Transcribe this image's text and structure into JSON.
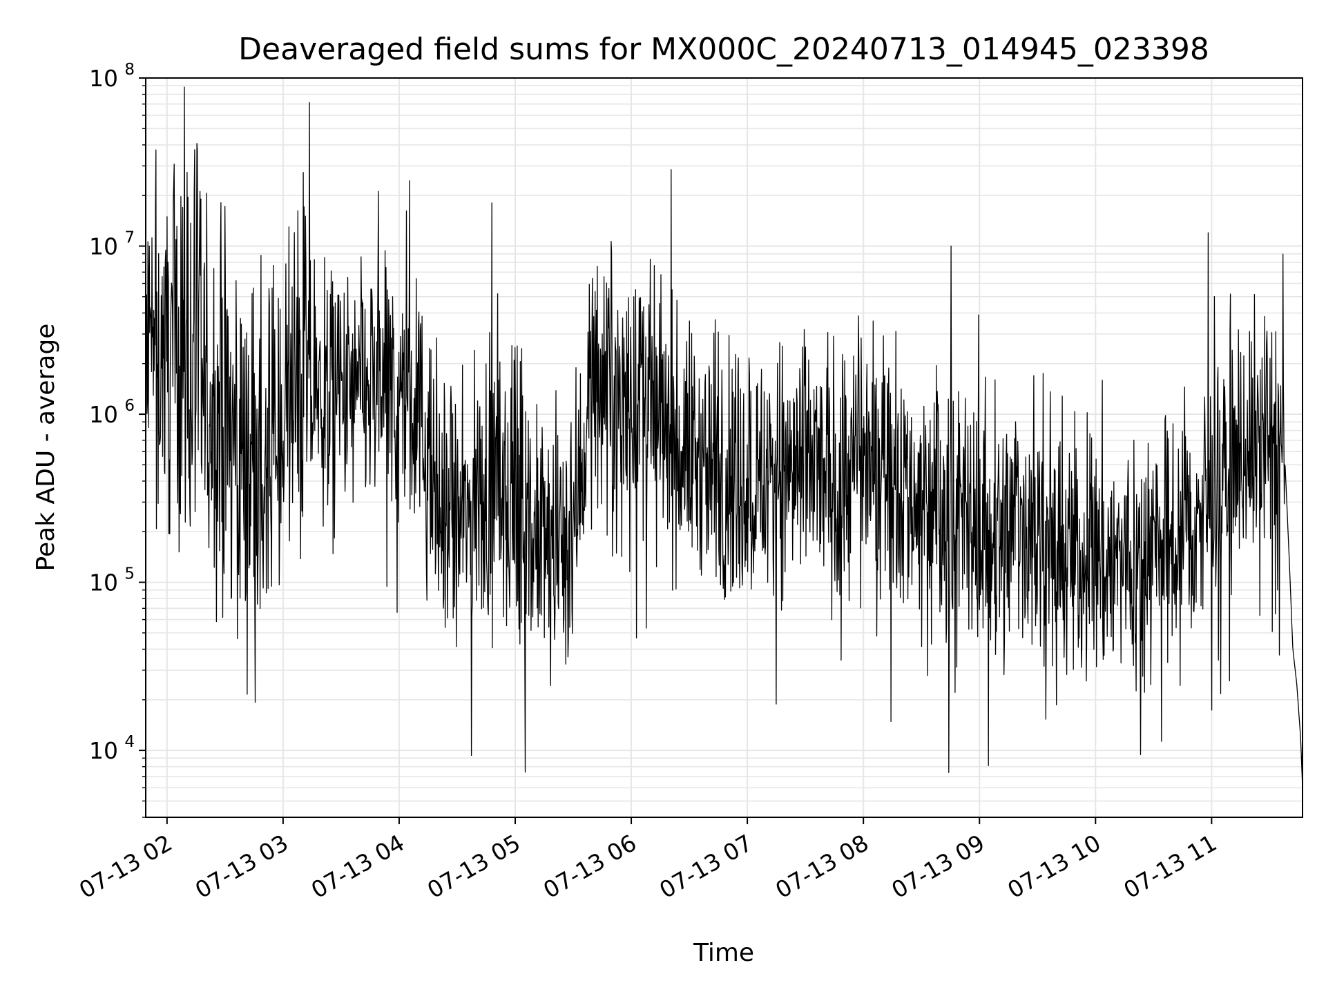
{
  "chart_data": {
    "type": "line",
    "title": "Deaveraged field sums for MX000C_20240713_014945_023398",
    "xlabel": "Time",
    "ylabel": "Peak ADU - average",
    "yscale": "log",
    "ylim": [
      4000,
      100000000
    ],
    "xlim": [
      "07-13 01:49:45",
      "07-13 11:47:00"
    ],
    "grid": true,
    "line_color": "#000000",
    "grid_color": "#e6e6e6",
    "x_ticks": [
      "07-13 02",
      "07-13 03",
      "07-13 04",
      "07-13 05",
      "07-13 06",
      "07-13 07",
      "07-13 08",
      "07-13 09",
      "07-13 10",
      "07-13 11"
    ],
    "y_ticks": [
      {
        "base": "10",
        "exp": "4",
        "value": 10000
      },
      {
        "base": "10",
        "exp": "5",
        "value": 100000
      },
      {
        "base": "10",
        "exp": "6",
        "value": 1000000
      },
      {
        "base": "10",
        "exp": "7",
        "value": 10000000
      },
      {
        "base": "10",
        "exp": "8",
        "value": 100000000
      }
    ],
    "series": [
      {
        "x": [
          "07-13 01:50",
          "07-13 02:00",
          "07-13 02:10",
          "07-13 02:20",
          "07-13 02:30",
          "07-13 02:40",
          "07-13 02:50",
          "07-13 03:00",
          "07-13 03:10",
          "07-13 03:20",
          "07-13 03:30",
          "07-13 03:40",
          "07-13 03:50",
          "07-13 04:00",
          "07-13 04:10",
          "07-13 04:20",
          "07-13 04:30",
          "07-13 04:40",
          "07-13 04:50",
          "07-13 05:00",
          "07-13 05:10",
          "07-13 05:20",
          "07-13 05:30",
          "07-13 05:40",
          "07-13 05:50",
          "07-13 06:00",
          "07-13 06:10",
          "07-13 06:20",
          "07-13 06:30",
          "07-13 06:40",
          "07-13 06:50",
          "07-13 07:00",
          "07-13 07:10",
          "07-13 07:20",
          "07-13 07:30",
          "07-13 07:40",
          "07-13 07:50",
          "07-13 08:00",
          "07-13 08:10",
          "07-13 08:20",
          "07-13 08:30",
          "07-13 08:40",
          "07-13 08:50",
          "07-13 09:00",
          "07-13 09:10",
          "07-13 09:20",
          "07-13 09:30",
          "07-13 09:40",
          "07-13 09:50",
          "07-13 10:00",
          "07-13 10:10",
          "07-13 10:20",
          "07-13 10:30",
          "07-13 10:40",
          "07-13 10:50",
          "07-13 11:00",
          "07-13 11:10",
          "07-13 11:20",
          "07-13 11:30",
          "07-13 11:38",
          "07-13 11:40",
          "07-13 11:42",
          "07-13 11:44",
          "07-13 11:46",
          "07-13 11:47"
        ],
        "y": [
          2000000,
          2500000,
          3000000,
          1200000,
          800000,
          600000,
          400000,
          900000,
          1500000,
          1300000,
          1200000,
          1300000,
          1400000,
          1200000,
          1000000,
          250000,
          200000,
          300000,
          400000,
          200000,
          180000,
          150000,
          200000,
          1800000,
          1500000,
          1300000,
          1000000,
          700000,
          600000,
          500000,
          400000,
          450000,
          400000,
          450000,
          500000,
          420000,
          400000,
          550000,
          600000,
          400000,
          300000,
          250000,
          200000,
          220000,
          180000,
          250000,
          200000,
          150000,
          140000,
          150000,
          130000,
          140000,
          150000,
          180000,
          200000,
          300000,
          500000,
          700000,
          800000,
          500000,
          150000,
          40000,
          25000,
          12000,
          6000
        ]
      }
    ]
  }
}
